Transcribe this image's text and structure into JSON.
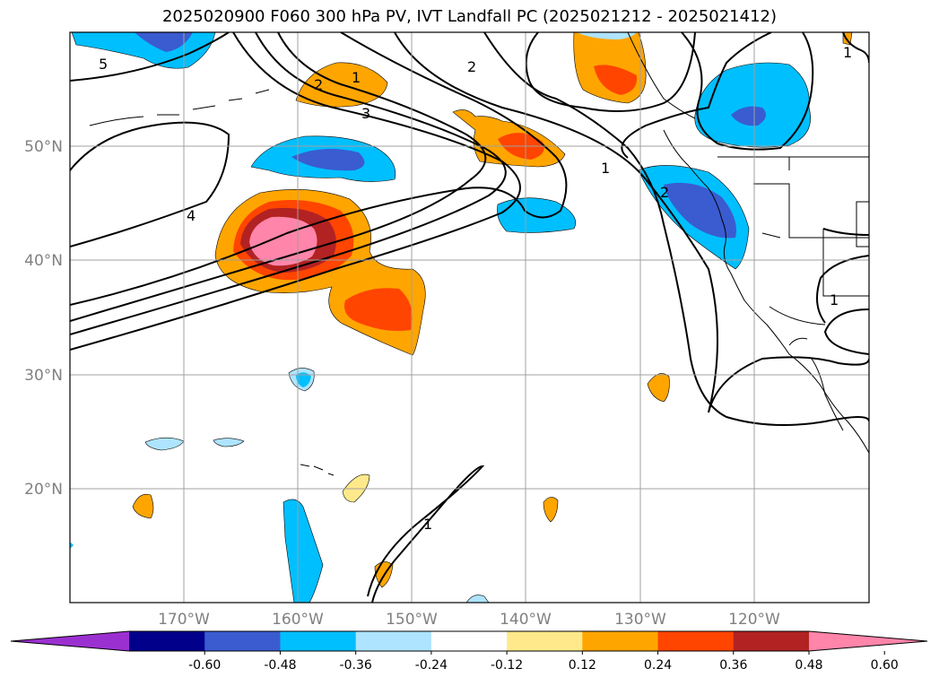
{
  "title": "2025020900 F060 300 hPa PV, IVT Landfall PC (2025021212 - 2025021412)",
  "latitude_labels": [
    "50°N",
    "40°N",
    "30°N",
    "20°N"
  ],
  "longitude_labels": [
    "170°W",
    "160°W",
    "150°W",
    "140°W",
    "130°W",
    "120°W"
  ],
  "contour_labels": [
    "5",
    "2",
    "1",
    "3",
    "2",
    "4",
    "1",
    "1",
    "2",
    "1",
    "1"
  ],
  "colorbar": {
    "colors": [
      "#9b30d0",
      "#00008b",
      "#3a5cd0",
      "#00bfff",
      "#aee4ff",
      "#ffffff",
      "#ffe98a",
      "#ffa500",
      "#ff4500",
      "#b22222",
      "#ff85aa"
    ],
    "tick_labels": [
      "-0.60",
      "-0.48",
      "-0.36",
      "-0.24",
      "-0.12",
      "0.12",
      "0.24",
      "0.36",
      "0.48",
      "0.60"
    ]
  }
}
